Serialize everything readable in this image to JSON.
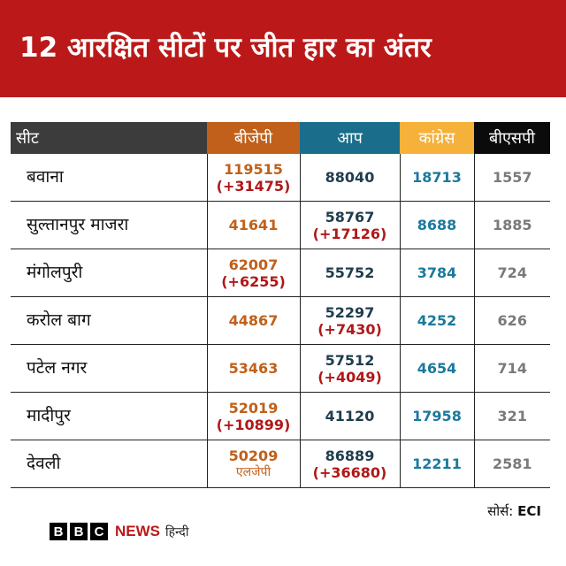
{
  "header": {
    "title": "12 आरक्षित सीटों पर जीत हार का अंतर"
  },
  "table": {
    "columns": [
      "सीट",
      "बीजेपी",
      "आप",
      "कांग्रेस",
      "बीएसपी"
    ],
    "rows": [
      {
        "seat": "बवाना",
        "bjp": "119515",
        "bjp_margin": "(+31475)",
        "aap": "88040",
        "aap_margin": "",
        "inc": "18713",
        "bsp": "1557"
      },
      {
        "seat": "सुल्तानपुर माजरा",
        "bjp": "41641",
        "bjp_margin": "",
        "aap": "58767",
        "aap_margin": "(+17126)",
        "inc": "8688",
        "bsp": "1885"
      },
      {
        "seat": "मंगोलपुरी",
        "bjp": "62007",
        "bjp_margin": "(+6255)",
        "aap": "55752",
        "aap_margin": "",
        "inc": "3784",
        "bsp": "724"
      },
      {
        "seat": "करोल बाग",
        "bjp": "44867",
        "bjp_margin": "",
        "aap": "52297",
        "aap_margin": "(+7430)",
        "inc": "4252",
        "bsp": "626"
      },
      {
        "seat": "पटेल नगर",
        "bjp": "53463",
        "bjp_margin": "",
        "aap": "57512",
        "aap_margin": "(+4049)",
        "inc": "4654",
        "bsp": "714"
      },
      {
        "seat": "मादीपुर",
        "bjp": "52019",
        "bjp_margin": "(+10899)",
        "aap": "41120",
        "aap_margin": "",
        "inc": "17958",
        "bsp": "321"
      },
      {
        "seat": "देवली",
        "bjp": "50209",
        "bjp_margin": "",
        "bjp_note": "एलजेपी",
        "aap": "86889",
        "aap_margin": "(+36680)",
        "inc": "12211",
        "bsp": "2581"
      }
    ]
  },
  "source": {
    "label": "सोर्स:",
    "value": "ECI"
  },
  "logo": {
    "b1": "B",
    "b2": "B",
    "b3": "C",
    "news": "NEWS",
    "lang": "हिन्दी"
  },
  "colors": {
    "banner": "#bb1919",
    "bjp": "#c0601a",
    "aap": "#1a6e8c",
    "inc": "#f5b13a",
    "bsp": "#0b0b0b",
    "margin": "#b01818"
  }
}
